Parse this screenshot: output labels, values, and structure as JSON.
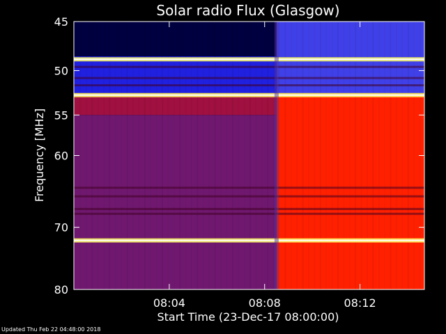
{
  "chart_data": {
    "type": "heatmap",
    "title": "Solar radio Flux (Glasgow)",
    "xlabel": "Start Time (23-Dec-17 08:00:00)",
    "ylabel": "Frequency [MHz]",
    "x_unit": "minutes after 08:00",
    "xlim": [
      0,
      14.7
    ],
    "ylim": [
      45,
      80
    ],
    "y_scale": "log",
    "y_inverted": true,
    "x_ticks": [
      {
        "value": 4,
        "label": "08:04"
      },
      {
        "value": 8,
        "label": "08:08"
      },
      {
        "value": 12,
        "label": "08:12"
      }
    ],
    "y_ticks": [
      {
        "value": 45,
        "label": "45"
      },
      {
        "value": 50,
        "label": "50"
      },
      {
        "value": 55,
        "label": "55"
      },
      {
        "value": 60,
        "label": "60"
      },
      {
        "value": 70,
        "label": "70"
      },
      {
        "value": 80,
        "label": "80"
      }
    ],
    "onset_minute": 8.5,
    "regions": [
      {
        "t0": 0,
        "t1": 8.5,
        "f0": 45,
        "f1": 52.5,
        "level": "low",
        "color": "#2020e0"
      },
      {
        "t0": 0,
        "t1": 8.5,
        "f0": 45,
        "f1": 48.5,
        "level": "very-low",
        "color": "#000040"
      },
      {
        "t0": 0,
        "t1": 8.5,
        "f0": 52.5,
        "f1": 55,
        "level": "medium",
        "color": "#a01040"
      },
      {
        "t0": 0,
        "t1": 8.5,
        "f0": 55,
        "f1": 80,
        "level": "medium-low",
        "color": "#701870"
      },
      {
        "t0": 8.5,
        "t1": 14.7,
        "f0": 45,
        "f1": 52.5,
        "level": "low",
        "color": "#4040e8"
      },
      {
        "t0": 8.5,
        "t1": 14.7,
        "f0": 52.5,
        "f1": 80,
        "level": "high",
        "color": "#ff2000"
      }
    ],
    "bright_lines_mhz": [
      48.8,
      52.7,
      72.0
    ],
    "dark_lines_mhz": [
      49.6,
      50.8,
      51.6,
      64.3,
      65.5,
      67.3,
      68.0
    ],
    "colors": {
      "background": "#000000",
      "axis": "#ffffff",
      "bright_line": "#ffff60",
      "line_core": "#ffffff"
    }
  },
  "footer": {
    "updated": "Updated Thu Feb 22 04:48:00 2018"
  }
}
